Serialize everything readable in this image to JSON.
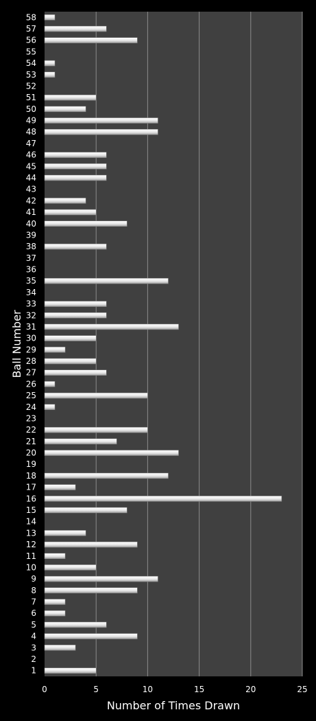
{
  "chart_data": {
    "type": "bar",
    "orientation": "horizontal",
    "xlabel": "Number of Times Drawn",
    "ylabel": "Ball Number",
    "xlim": [
      0,
      25
    ],
    "xticks": [
      0,
      5,
      10,
      15,
      20,
      25
    ],
    "grid": true,
    "colors": {
      "background": "#000000",
      "plot_area": "#404040",
      "bar": "#f2f2f2",
      "gridline": "#8c8c8c",
      "text": "#ffffff"
    },
    "categories": [
      "1",
      "2",
      "3",
      "4",
      "5",
      "6",
      "7",
      "8",
      "9",
      "10",
      "11",
      "12",
      "13",
      "14",
      "15",
      "16",
      "17",
      "18",
      "19",
      "20",
      "21",
      "22",
      "23",
      "24",
      "25",
      "26",
      "27",
      "28",
      "29",
      "30",
      "31",
      "32",
      "33",
      "34",
      "35",
      "36",
      "37",
      "38",
      "39",
      "40",
      "41",
      "42",
      "43",
      "44",
      "45",
      "46",
      "47",
      "48",
      "49",
      "50",
      "51",
      "52",
      "53",
      "54",
      "55",
      "56",
      "57",
      "58"
    ],
    "values": [
      5,
      0,
      3,
      9,
      6,
      2,
      2,
      9,
      11,
      5,
      2,
      9,
      4,
      0,
      8,
      23,
      3,
      12,
      0,
      13,
      7,
      10,
      0,
      1,
      10,
      1,
      6,
      5,
      2,
      5,
      13,
      6,
      6,
      0,
      12,
      0,
      0,
      6,
      0,
      8,
      5,
      4,
      0,
      6,
      6,
      6,
      0,
      11,
      11,
      4,
      5,
      0,
      1,
      1,
      0,
      9,
      6,
      1
    ]
  }
}
